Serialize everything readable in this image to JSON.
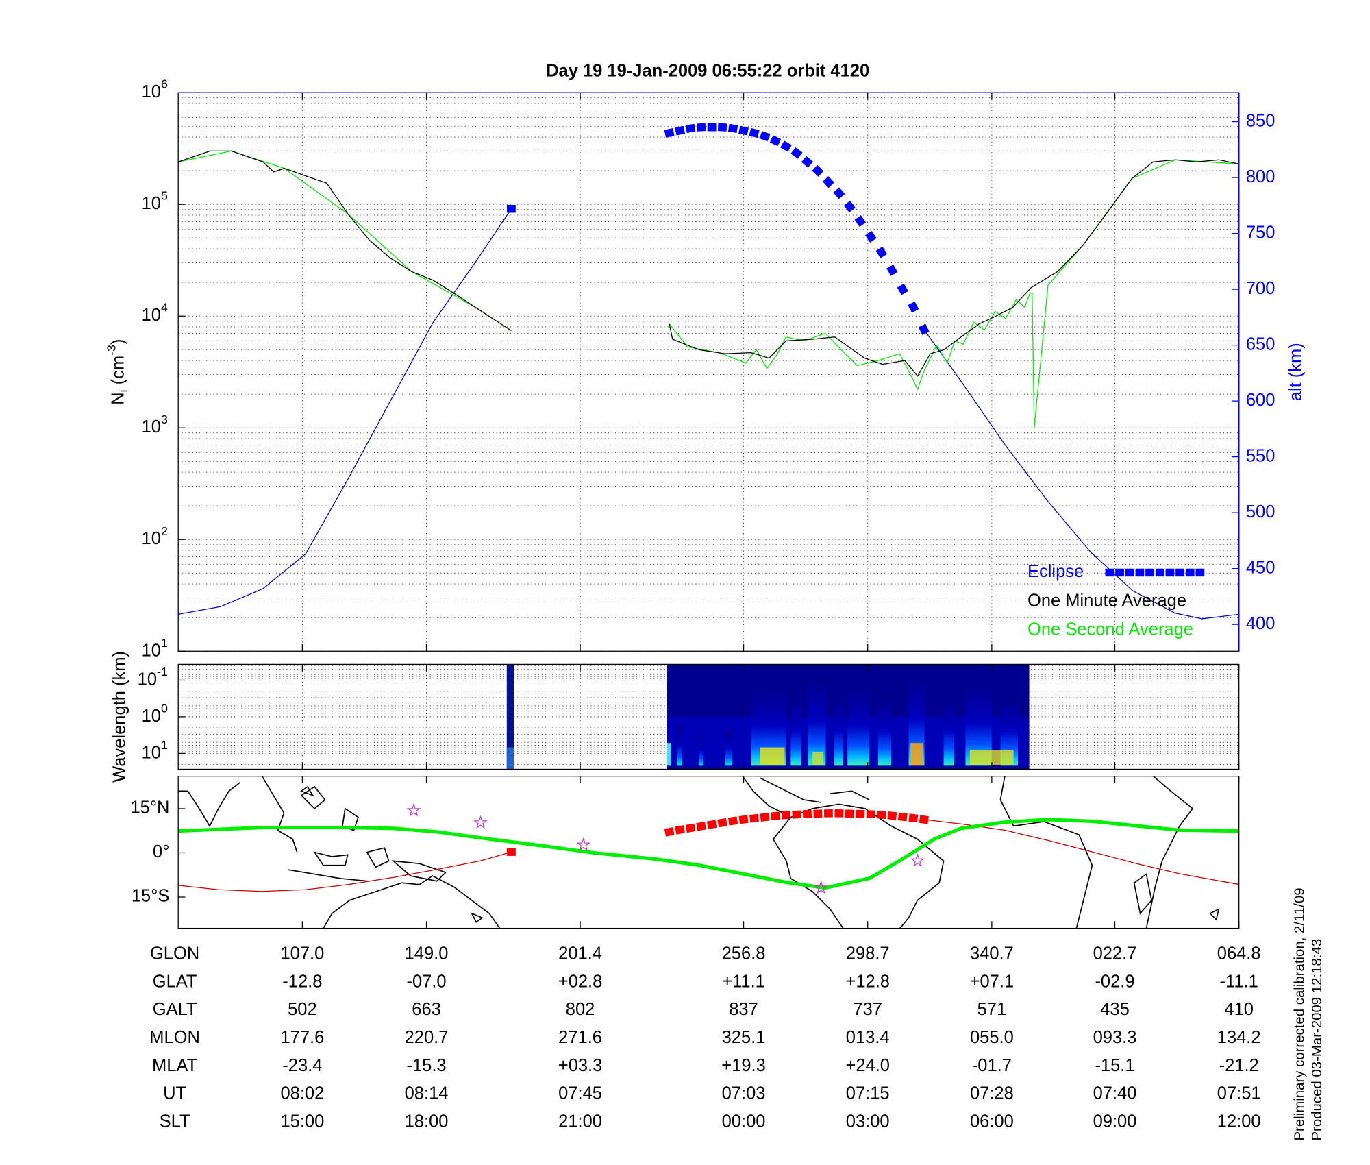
{
  "chart_data": [
    {
      "type": "line",
      "title": "Day 19  19-Jan-2009 06:55:22   orbit 4120",
      "ylabel": [
        {
          "text": "N"
        },
        {
          "text": "i",
          "shift": "sub"
        },
        {
          "text": " (cm"
        },
        {
          "text": "-3",
          "shift": "super"
        },
        {
          "text": ")"
        }
      ],
      "y2label": "alt (km)",
      "y2color": "#0000ff",
      "log_y": true,
      "ylim": [
        10,
        1000000
      ],
      "yticks": [
        {
          "value": 10,
          "label": "10",
          "exponent": "1"
        },
        {
          "value": 100,
          "label": "10",
          "exponent": "2"
        },
        {
          "value": 1000,
          "label": "10",
          "exponent": "3"
        },
        {
          "value": 10000,
          "label": "10",
          "exponent": "4"
        },
        {
          "value": 100000,
          "label": "10",
          "exponent": "5"
        },
        {
          "value": 1000000,
          "label": "10",
          "exponent": "6"
        }
      ],
      "y2lim": [
        376,
        876
      ],
      "y2ticks": [
        400,
        450,
        500,
        550,
        600,
        650,
        700,
        750,
        800,
        850
      ],
      "xlim": [
        0,
        100
      ],
      "xticks": [
        11.7,
        23.4,
        37.9,
        53.3,
        65,
        76.7,
        88.3,
        100
      ],
      "grid": true,
      "minor_grid": true,
      "legend": "lower right",
      "series": [
        {
          "name": "Eclipse",
          "color": "#0000ff",
          "axis": "y2",
          "marker": "square",
          "x": [
            31.4,
            40,
            46.3,
            47.3,
            48.3,
            49.3,
            50.3,
            51.3,
            52.3,
            53.3,
            54.3,
            55.3,
            56.3,
            57.3,
            58.3,
            59.3,
            60.3,
            61.3,
            62.3,
            63.3,
            64.3,
            65.3,
            66.3,
            67.3,
            68.3,
            69.3,
            70.3
          ],
          "values": [
            772,
            null,
            840,
            842,
            844,
            845,
            845,
            845,
            844,
            842,
            840,
            837,
            833,
            828,
            822,
            814,
            806,
            796,
            786,
            774,
            761,
            747,
            733,
            717,
            700,
            684,
            664
          ]
        },
        {
          "name": "One Minute Average",
          "color": "#000000",
          "x": [
            0,
            3,
            5,
            8,
            9,
            10,
            12,
            14,
            16,
            18,
            20,
            22,
            24,
            26,
            28,
            31.4,
            40,
            46.3,
            46.6,
            49.1,
            51.6,
            54.0,
            55.7,
            57.3,
            59.8,
            61.9,
            63.1,
            64.7,
            66.4,
            68.5,
            69.7,
            70.9,
            72.2,
            73.8,
            75.5,
            77.1,
            78.7,
            80.4,
            82.9,
            85.3,
            87.8,
            89.9,
            91.9,
            94.0,
            96.0,
            98.1,
            100
          ],
          "values": [
            240000,
            300000,
            300000,
            240000,
            195000,
            210000,
            180000,
            155000,
            82000,
            48000,
            33000,
            25000,
            21000,
            16000,
            12000,
            7400,
            null,
            8500,
            6200,
            5000,
            4600,
            4700,
            4200,
            6000,
            6200,
            6500,
            5400,
            4200,
            3700,
            4000,
            2900,
            4600,
            5000,
            6500,
            8500,
            10000,
            12000,
            18000,
            25000,
            43000,
            90000,
            170000,
            240000,
            250000,
            240000,
            250000,
            230000
          ]
        },
        {
          "name": "One Second Average",
          "color": "#00ee00",
          "x": [
            0,
            5,
            10,
            16,
            22,
            28,
            31.4,
            40,
            46.3,
            48,
            51,
            53.5,
            54.5,
            55.5,
            56.5,
            57.3,
            59,
            61,
            62.5,
            64,
            66,
            68,
            69.2,
            69.7,
            70.3,
            71.5,
            72.5,
            73.2,
            74,
            75,
            76,
            77,
            78,
            79,
            79.8,
            80.3,
            80.5,
            80.7,
            82,
            85.3,
            89.9,
            94,
            100
          ],
          "values": [
            240000,
            300000,
            210000,
            82000,
            25000,
            12000,
            7400,
            null,
            8500,
            5300,
            4700,
            3800,
            5000,
            3400,
            4600,
            6500,
            6000,
            7000,
            5000,
            3600,
            4000,
            4600,
            2800,
            2200,
            3200,
            5500,
            3800,
            6000,
            5600,
            8800,
            7500,
            11000,
            9500,
            14000,
            12000,
            16000,
            16000,
            1000,
            19000,
            43000,
            170000,
            250000,
            230000
          ]
        },
        {
          "color": "#0000cc",
          "axis": "y2",
          "x": [
            0,
            4,
            8,
            12,
            16,
            20,
            24,
            28,
            31.4,
            50,
            70.3,
            74,
            78,
            82,
            86,
            90,
            94,
            96.5,
            100
          ],
          "values": [
            409,
            416,
            432,
            463,
            530,
            600,
            670,
            724,
            772,
            null,
            664,
            615,
            560,
            510,
            465,
            430,
            410,
            405,
            409
          ]
        }
      ]
    },
    {
      "type": "spectrogram",
      "ylabel": "Wavelength (km)",
      "log_y": true,
      "y_inverted": true,
      "ylim": [
        0.037,
        27
      ],
      "yticks": [
        {
          "value": 0.1,
          "label": "10",
          "exponent": "-1"
        },
        {
          "value": 1,
          "label": "10",
          "exponent": "0"
        },
        {
          "value": 10,
          "label": "10",
          "exponent": "1"
        }
      ],
      "xlim": [
        0,
        100
      ],
      "xticks": [
        11.7,
        23.4,
        37.9,
        53.3,
        65,
        76.7,
        88.3,
        100
      ],
      "grid": true,
      "minor_grid": true
    },
    {
      "type": "map",
      "ylim": [
        -25.6,
        26
      ],
      "yticks": [
        {
          "value": 15,
          "label": "15°N"
        },
        {
          "value": 0,
          "label": "0°"
        },
        {
          "value": -15,
          "label": "15°S"
        }
      ],
      "xlim": [
        0,
        100
      ],
      "xticks": [
        11.7,
        23.4,
        37.9,
        53.3,
        65,
        76.7,
        88.3,
        100
      ],
      "grid": false,
      "series": [
        {
          "color": "#00ee00",
          "line_width": 4,
          "x": [
            0,
            7.9,
            16.1,
            20.3,
            24.4,
            29.3,
            34.3,
            39.2,
            45,
            49.1,
            53.2,
            57.3,
            61,
            65.2,
            68,
            71.3,
            73.8,
            77.9,
            82,
            86.2,
            90.3,
            94.4,
            100
          ],
          "values": [
            7.4,
            8.6,
            8.6,
            8.3,
            7.1,
            4.7,
            2.4,
            0,
            -2.1,
            -4.2,
            -7.1,
            -10,
            -11.9,
            -8.6,
            -2.7,
            4.7,
            8.3,
            10.4,
            11.3,
            10.7,
            9.2,
            7.7,
            7.4
          ]
        },
        {
          "color": "#cc0000",
          "x": [
            0,
            3.8,
            7.9,
            12,
            16.1,
            20.3,
            24.4,
            28.5,
            31.4,
            50,
            70.3,
            73.8,
            77.9,
            82,
            86.2,
            90.3,
            94.4,
            100
          ],
          "values": [
            -11,
            -12.5,
            -13.1,
            -12.5,
            -10.7,
            -8.3,
            -5.6,
            -2.7,
            0.3,
            null,
            11.3,
            9.8,
            7.7,
            4.2,
            0.3,
            -3.6,
            -7.1,
            -10.7
          ]
        },
        {
          "color": "#ff0000",
          "marker": "square",
          "x": [
            31.4,
            40,
            46.3,
            47.3,
            48.3,
            49.3,
            50.3,
            51.3,
            52.3,
            53.3,
            54.3,
            55.3,
            56.3,
            57.3,
            58.3,
            59.3,
            60.3,
            61.3,
            62.3,
            63.3,
            64.3,
            65.3,
            66.3,
            67.3,
            68.3,
            69.3,
            70.3
          ],
          "values": [
            0.3,
            null,
            7.1,
            7.8,
            8.4,
            9.0,
            9.6,
            10.2,
            10.8,
            11.3,
            11.7,
            12.1,
            12.5,
            12.8,
            13.0,
            13.2,
            13.3,
            13.4,
            13.4,
            13.3,
            13.2,
            13.1,
            12.9,
            12.6,
            12.2,
            11.8,
            11.3
          ]
        }
      ],
      "stars": {
        "color": "#cc33cc",
        "x": [
          22.2,
          28.5,
          38.2,
          60.6,
          69.7
        ],
        "values": [
          14.4,
          10.2,
          2.7,
          -11.9,
          -2.7
        ]
      }
    }
  ],
  "table": {
    "rows": [
      {
        "label": "GLON",
        "values": [
          "107.0",
          "149.0",
          "201.4",
          "256.8",
          "298.7",
          "340.7",
          "022.7",
          "064.8"
        ]
      },
      {
        "label": "GLAT",
        "values": [
          "-12.8",
          "-07.0",
          "+02.8",
          "+11.1",
          "+12.8",
          "+07.1",
          "-02.9",
          "-11.1"
        ]
      },
      {
        "label": "GALT",
        "values": [
          "502",
          "663",
          "802",
          "837",
          "737",
          "571",
          "435",
          "410"
        ]
      },
      {
        "label": "MLON",
        "values": [
          "177.6",
          "220.7",
          "271.6",
          "325.1",
          "013.4",
          "055.0",
          "093.3",
          "134.2"
        ]
      },
      {
        "label": "MLAT",
        "values": [
          "-23.4",
          "-15.3",
          "+03.3",
          "+19.3",
          "+24.0",
          "-01.7",
          "-15.1",
          "-21.2"
        ]
      },
      {
        "label": "UT",
        "values": [
          "08:02",
          "08:14",
          "07:45",
          "07:03",
          "07:15",
          "07:28",
          "07:40",
          "07:51"
        ]
      },
      {
        "label": "SLT",
        "values": [
          "15:00",
          "18:00",
          "21:00",
          "00:00",
          "03:00",
          "06:00",
          "09:00",
          "12:00"
        ]
      }
    ]
  },
  "notes": [
    "Preliminary corrected calibration, 2/11/09",
    "Produced 03-Mar-2009 12:18:43"
  ]
}
